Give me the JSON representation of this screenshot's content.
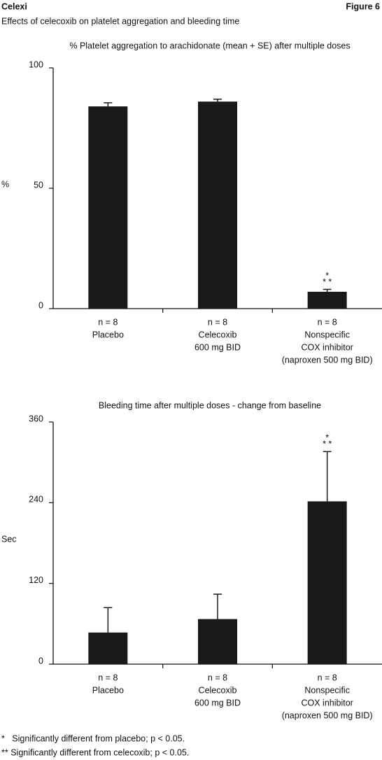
{
  "header": {
    "brand": "Celexi",
    "figure": "Figure 6",
    "subtitle": "Effects of celecoxib on platelet aggregation and bleeding time"
  },
  "chart_data": [
    {
      "type": "bar",
      "title": "% Platelet aggregation to arachidonate (mean + SE) after multiple doses",
      "ylabel": "%",
      "categories": [
        [
          "n = 8",
          "Placebo"
        ],
        [
          "n = 8",
          "Celecoxib",
          "600 mg BID"
        ],
        [
          "n = 8",
          "Nonspecific",
          "COX inhibitor",
          "(naproxen 500 mg BID)"
        ]
      ],
      "values": [
        84,
        86,
        7
      ],
      "errors": [
        1.5,
        1,
        1
      ],
      "annotations": [
        null,
        null,
        [
          "*",
          "* *"
        ]
      ],
      "color": "#1a1a1a",
      "ylim": [
        0,
        100
      ],
      "yticks": [
        0,
        50,
        100
      ]
    },
    {
      "type": "bar",
      "title": "Bleeding time after multiple doses - change from baseline",
      "ylabel": "Sec",
      "categories": [
        [
          "n = 8",
          "Placebo"
        ],
        [
          "n = 8",
          "Celecoxib",
          "600 mg BID"
        ],
        [
          "n = 8",
          "Nonspecific",
          "COX inhibitor",
          "(naproxen 500 mg BID)"
        ]
      ],
      "values": [
        47,
        67,
        242
      ],
      "errors": [
        37,
        37,
        74
      ],
      "annotations": [
        null,
        null,
        [
          "*",
          "* *"
        ]
      ],
      "color": "#1a1a1a",
      "ylim": [
        0,
        360
      ],
      "yticks": [
        0,
        120,
        240,
        360
      ]
    }
  ],
  "footnotes": [
    "*   Significantly different from placebo; p < 0.05.",
    "** Significantly different from celecoxib; p < 0.05."
  ]
}
